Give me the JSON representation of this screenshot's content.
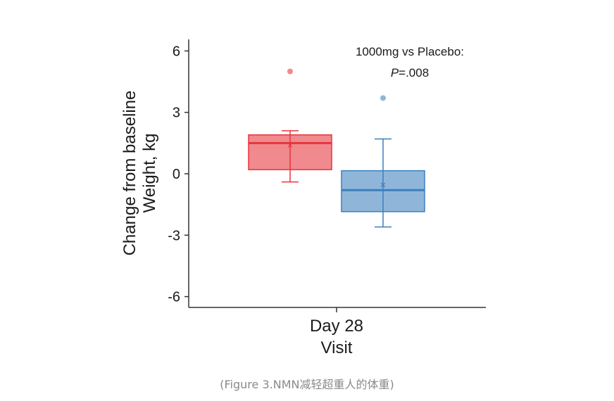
{
  "chart_data": {
    "type": "box",
    "title": "",
    "xlabel": "Visit",
    "ylabel_lines": [
      "Change from baseline",
      "Weight, kg"
    ],
    "categories": [
      "Day 28"
    ],
    "ylim": [
      -6.5,
      6.5
    ],
    "yticks": [
      6,
      3,
      0,
      -3,
      -6
    ],
    "ytick_labels": [
      "6",
      "3",
      "0",
      "-3",
      "-6"
    ],
    "grid": false,
    "series": [
      {
        "color": "#e8343c",
        "fill": "#f08a8e",
        "q1": 0.2,
        "median": 1.5,
        "q3": 1.9,
        "mean": 1.4,
        "whisker_low": -0.4,
        "whisker_high": 2.1,
        "outliers": [
          5.0
        ]
      },
      {
        "color": "#3b7fbf",
        "fill": "#8fb6d9",
        "q1": -1.85,
        "median": -0.8,
        "q3": 0.15,
        "mean": -0.55,
        "whisker_low": -2.6,
        "whisker_high": 1.7,
        "outliers": [
          3.7
        ]
      }
    ],
    "annotation": {
      "line1": "1000mg vs Placebo:",
      "p_italic": "P",
      "p_value": "=.008"
    }
  },
  "caption": "(Figure 3.NMN减轻超重人的体重)"
}
